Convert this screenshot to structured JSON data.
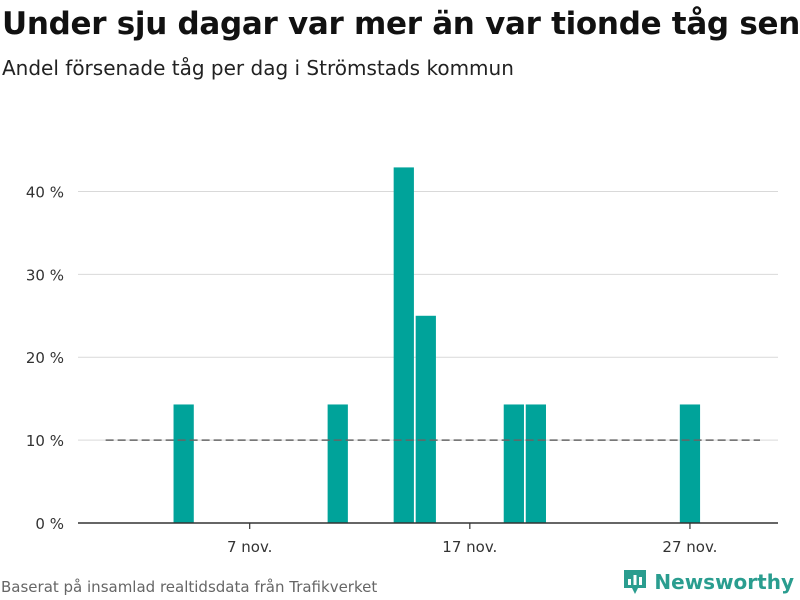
{
  "header": {
    "title": "Under sju dagar var mer än var tionde tåg sent",
    "subtitle": "Andel försenade tåg per dag i Strömstads kommun"
  },
  "footer": {
    "source": "Baserat på insamlad realtidsdata från Trafikverket",
    "brand": "Newsworthy"
  },
  "colors": {
    "bar": "#00a39a",
    "reference_line": "#666666",
    "gridline": "#d9d9d9",
    "brand": "#2a9d8f"
  },
  "chart_data": {
    "type": "bar",
    "title": "Under sju dagar var mer än var tionde tåg sent",
    "subtitle": "Andel försenade tåg per dag i Strömstads kommun",
    "xlabel": "",
    "ylabel": "",
    "x_start": "1 nov.",
    "x_end": "30 nov.",
    "xlim": [
      -0.8,
      31.0
    ],
    "ylim": [
      0,
      45
    ],
    "grid": true,
    "y_ticks": [
      {
        "value": 0,
        "label": "0 %"
      },
      {
        "value": 10,
        "label": "10 %"
      },
      {
        "value": 20,
        "label": "20 %"
      },
      {
        "value": 30,
        "label": "30 %"
      },
      {
        "value": 40,
        "label": "40 %"
      }
    ],
    "x_ticks": [
      {
        "day": 7,
        "label": "7 nov."
      },
      {
        "day": 17,
        "label": "17 nov."
      },
      {
        "day": 27,
        "label": "27 nov."
      }
    ],
    "reference_line": {
      "value": 10,
      "style": "dashed"
    },
    "series": [
      {
        "name": "Andel försenade tåg",
        "days": [
          1,
          2,
          3,
          4,
          5,
          6,
          7,
          8,
          9,
          10,
          11,
          12,
          13,
          14,
          15,
          16,
          17,
          18,
          19,
          20,
          21,
          22,
          23,
          24,
          25,
          26,
          27,
          28,
          29,
          30
        ],
        "values": [
          0,
          0,
          0,
          14.3,
          0,
          0,
          0,
          0,
          0,
          0,
          14.3,
          0,
          0,
          42.9,
          25,
          0,
          0,
          0,
          14.3,
          14.3,
          0,
          0,
          0,
          0,
          0,
          0,
          14.3,
          0,
          0,
          0
        ]
      }
    ]
  }
}
